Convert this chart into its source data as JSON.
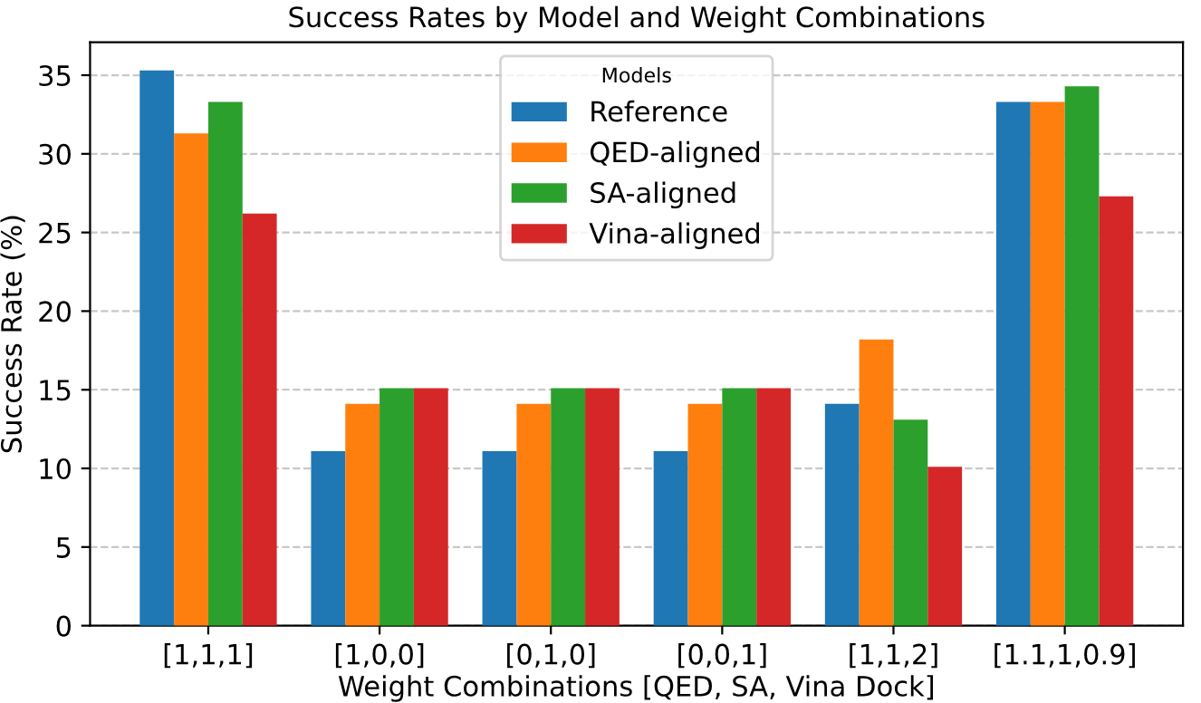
{
  "chart_data": {
    "type": "bar",
    "title": "Success Rates by Model and Weight Combinations",
    "xlabel": "Weight Combinations [QED, SA, Vina Dock]",
    "ylabel": "Success Rate (%)",
    "legend_title": "Models",
    "categories": [
      "[1,1,1]",
      "[1,0,0]",
      "[0,1,0]",
      "[0,0,1]",
      "[1,1,2]",
      "[1.1,1,0.9]"
    ],
    "series": [
      {
        "name": "Reference",
        "color": "#1f77b4",
        "values": [
          35.3,
          11.1,
          11.1,
          11.1,
          14.1,
          33.3
        ]
      },
      {
        "name": "QED-aligned",
        "color": "#ff7f0e",
        "values": [
          31.3,
          14.1,
          14.1,
          14.1,
          18.2,
          33.3
        ]
      },
      {
        "name": "SA-aligned",
        "color": "#2ca02c",
        "values": [
          33.3,
          15.1,
          15.1,
          15.1,
          13.1,
          34.3
        ]
      },
      {
        "name": "Vina-aligned",
        "color": "#d62728",
        "values": [
          26.2,
          15.1,
          15.1,
          15.1,
          10.1,
          27.3
        ]
      }
    ],
    "ylim": [
      0,
      37.1
    ],
    "yticks": [
      0,
      5,
      10,
      15,
      20,
      25,
      30,
      35
    ],
    "grid": "y",
    "legend": "top"
  }
}
